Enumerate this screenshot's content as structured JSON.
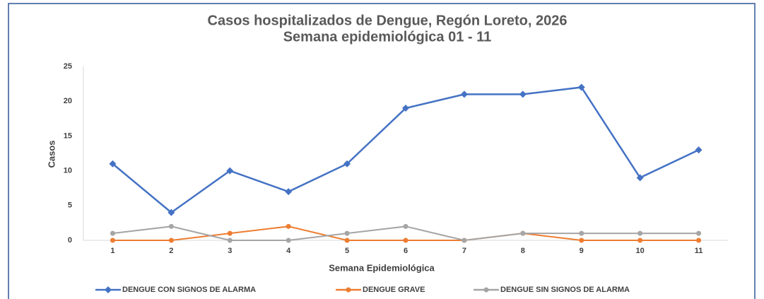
{
  "chart_data": {
    "type": "line",
    "title": "Casos hospitalizados de Dengue, Regón Loreto, 2026",
    "subtitle": "Semana epidemiológica 01 - 11",
    "x_label": "Semana Epidemiológica",
    "y_label": "Casos",
    "categories": [
      "1",
      "2",
      "3",
      "4",
      "5",
      "6",
      "7",
      "8",
      "9",
      "10",
      "11"
    ],
    "series": [
      {
        "name": "DENGUE CON SIGNOS DE ALARMA",
        "color": "#4472c4",
        "marker": "diamond",
        "values": [
          11,
          4,
          10,
          7,
          11,
          19,
          21,
          21,
          22,
          9,
          13
        ]
      },
      {
        "name": "DENGUE GRAVE",
        "color": "#ed7d31",
        "marker": "circle",
        "values": [
          0,
          0,
          1,
          2,
          0,
          0,
          0,
          1,
          0,
          0,
          0
        ]
      },
      {
        "name": "DENGUE SIN SIGNOS DE ALARMA",
        "color": "#a5a5a5",
        "marker": "circle",
        "values": [
          1,
          2,
          0,
          0,
          1,
          2,
          0,
          1,
          1,
          1,
          1
        ]
      }
    ],
    "ylim": [
      0,
      25
    ],
    "yticks": [
      0,
      5,
      10,
      15,
      20,
      25
    ],
    "grid": false,
    "legend": "bottom"
  }
}
